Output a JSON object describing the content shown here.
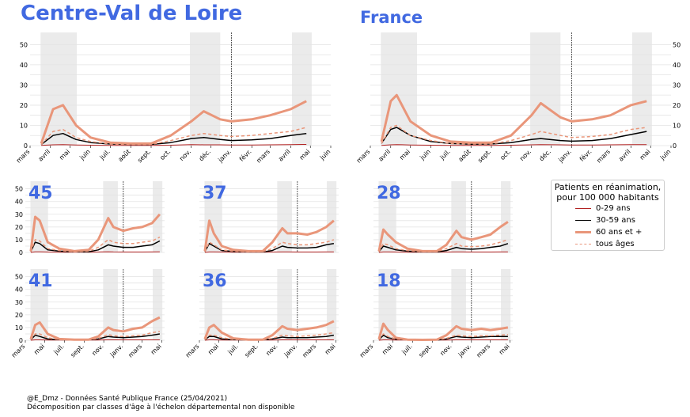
{
  "titles": {
    "region": "Centre-Val de Loire",
    "france": "France"
  },
  "legend": {
    "title_line1": "Patients en réanimation,",
    "title_line2": "pour 100 000 habitants",
    "items": [
      {
        "label": "0-29 ans",
        "color": "#b22222",
        "style": "solid",
        "weight": "thin"
      },
      {
        "label": "30-59 ans",
        "color": "#000000",
        "style": "solid",
        "weight": "normal"
      },
      {
        "label": "60 ans et +",
        "color": "#e9967a",
        "style": "solid",
        "weight": "thick"
      },
      {
        "label": "tous âges",
        "color": "#e9967a",
        "style": "dashed",
        "weight": "normal"
      }
    ]
  },
  "footer": {
    "line1": "@E_Dmz - Données Santé Publique France (25/04/2021)",
    "line2": "Décomposition par classes d'âge à l'échelon départemental non disponible"
  },
  "colors": {
    "accent": "#4169e1",
    "shade": "#ebebeb",
    "grid": "#e3e3e3"
  },
  "months_big": [
    "mars",
    "avril",
    "mai",
    "juin",
    "juil.",
    "août",
    "sept.",
    "oct.",
    "nov.",
    "déc.",
    "janv.",
    "févr.",
    "mars",
    "avril",
    "mai",
    "juin"
  ],
  "months_small": [
    "mars",
    "mai",
    "juil.",
    "sept.",
    "nov.",
    "janv.",
    "mars",
    "mai"
  ],
  "yticks_big": [
    "0",
    "10",
    "20",
    "30",
    "40",
    "50"
  ],
  "yticks_small": [
    "0",
    "10",
    "20",
    "30",
    "40",
    "50"
  ],
  "chart_data": [
    {
      "type": "line",
      "title": "Centre-Val de Loire",
      "ylim": [
        0,
        56
      ],
      "xlim": [
        "2020-03-01",
        "2021-06-01"
      ],
      "shaded_periods": [
        [
          "2020-03-17",
          "2020-05-11"
        ],
        [
          "2020-10-30",
          "2020-12-15"
        ],
        [
          "2021-04-03",
          "2021-05-03"
        ]
      ],
      "vline": "2021-01-01",
      "x": [
        "2020-03-18",
        "2020-04-05",
        "2020-04-20",
        "2020-05-10",
        "2020-06-01",
        "2020-07-01",
        "2020-08-01",
        "2020-09-01",
        "2020-10-01",
        "2020-11-01",
        "2020-11-20",
        "2020-12-15",
        "2021-01-01",
        "2021-02-01",
        "2021-03-01",
        "2021-04-01",
        "2021-04-25"
      ],
      "series": [
        {
          "name": "0-29 ans",
          "values": [
            0.1,
            0.4,
            0.5,
            0.3,
            0.2,
            0.1,
            0.1,
            0.1,
            0.2,
            0.5,
            0.4,
            0.4,
            0.3,
            0.3,
            0.4,
            0.5,
            0.6
          ]
        },
        {
          "name": "30-59 ans",
          "values": [
            0.5,
            5,
            6,
            3,
            1.5,
            0.8,
            0.6,
            0.6,
            1.5,
            3.5,
            4,
            3,
            2.5,
            2.8,
            3.5,
            5,
            6
          ]
        },
        {
          "name": "60 ans et +",
          "values": [
            1,
            18,
            20,
            10,
            4,
            1.5,
            1,
            1,
            5,
            12,
            17,
            13,
            12,
            13,
            15,
            18,
            22
          ]
        },
        {
          "name": "tous âges",
          "values": [
            0.5,
            7,
            8,
            4,
            2,
            0.8,
            0.6,
            0.6,
            2.5,
            5,
            6,
            5,
            4.5,
            5,
            6,
            7,
            9
          ]
        }
      ]
    },
    {
      "type": "line",
      "title": "France",
      "ylim": [
        0,
        56
      ],
      "xlim": [
        "2020-03-01",
        "2021-06-01"
      ],
      "shaded_periods": [
        [
          "2020-03-17",
          "2020-05-11"
        ],
        [
          "2020-10-30",
          "2020-12-15"
        ],
        [
          "2021-04-03",
          "2021-05-03"
        ]
      ],
      "vline": "2021-01-01",
      "x": [
        "2020-03-18",
        "2020-04-01",
        "2020-04-10",
        "2020-05-01",
        "2020-06-01",
        "2020-07-01",
        "2020-08-01",
        "2020-09-01",
        "2020-10-01",
        "2020-11-01",
        "2020-11-15",
        "2020-12-15",
        "2021-01-01",
        "2021-02-01",
        "2021-03-01",
        "2021-04-01",
        "2021-04-25"
      ],
      "series": [
        {
          "name": "0-29 ans",
          "values": [
            0.1,
            0.4,
            0.5,
            0.3,
            0.2,
            0.1,
            0.1,
            0.1,
            0.2,
            0.4,
            0.5,
            0.4,
            0.3,
            0.3,
            0.4,
            0.5,
            0.5
          ]
        },
        {
          "name": "30-59 ans",
          "values": [
            1,
            8,
            9,
            5,
            2,
            1,
            0.7,
            0.8,
            1.5,
            3,
            3.5,
            2.5,
            2.2,
            2.5,
            3.5,
            5.5,
            7
          ]
        },
        {
          "name": "60 ans et +",
          "values": [
            2,
            22,
            25,
            12,
            5,
            2,
            1.5,
            1.5,
            5,
            15,
            21,
            14,
            12,
            13,
            15,
            20,
            22
          ]
        },
        {
          "name": "tous âges",
          "values": [
            1,
            9,
            10,
            5,
            2.5,
            1,
            0.8,
            0.8,
            2.5,
            5.5,
            7,
            5,
            4,
            4.5,
            5.5,
            8,
            9
          ]
        }
      ]
    },
    {
      "type": "line",
      "title": "45",
      "ylim": [
        0,
        56
      ],
      "xlim": [
        "2020-03-01",
        "2021-05-10"
      ],
      "shaded_periods": [
        [
          "2020-03-17",
          "2020-05-11"
        ],
        [
          "2020-10-30",
          "2020-12-15"
        ],
        [
          "2021-04-03",
          "2021-05-03"
        ]
      ],
      "vline": "2021-01-01",
      "x": [
        "2020-03-18",
        "2020-04-01",
        "2020-04-15",
        "2020-05-10",
        "2020-06-15",
        "2020-08-01",
        "2020-09-15",
        "2020-10-15",
        "2020-11-15",
        "2020-12-01",
        "2021-01-01",
        "2021-02-01",
        "2021-03-01",
        "2021-04-01",
        "2021-04-25"
      ],
      "series": [
        {
          "name": "0-29 ans",
          "values": [
            0,
            0.5,
            0.5,
            0.3,
            0.1,
            0.1,
            0.1,
            0.3,
            0.5,
            0.4,
            0.3,
            0.3,
            0.3,
            0.4,
            0.5
          ]
        },
        {
          "name": "30-59 ans",
          "values": [
            0.5,
            8,
            7,
            2,
            1,
            0.5,
            0.5,
            2,
            6,
            5,
            4,
            4,
            5,
            6,
            9
          ]
        },
        {
          "name": "60 ans et +",
          "values": [
            1,
            28,
            25,
            8,
            3,
            1,
            2,
            10,
            27,
            20,
            17,
            19,
            20,
            23,
            30
          ]
        },
        {
          "name": "tous âges",
          "values": [
            0.5,
            10,
            9,
            3,
            1.5,
            0.5,
            1,
            4,
            10,
            8,
            7,
            7,
            8,
            9,
            12
          ]
        }
      ]
    },
    {
      "type": "line",
      "title": "37",
      "ylim": [
        0,
        56
      ],
      "xlim": [
        "2020-03-01",
        "2021-05-10"
      ],
      "shaded_periods": [
        [
          "2020-03-17",
          "2020-05-11"
        ],
        [
          "2020-10-30",
          "2020-12-15"
        ],
        [
          "2021-04-03",
          "2021-05-03"
        ]
      ],
      "vline": "2021-01-01",
      "x": [
        "2020-03-18",
        "2020-04-01",
        "2020-04-15",
        "2020-05-10",
        "2020-06-15",
        "2020-08-01",
        "2020-09-15",
        "2020-10-15",
        "2020-11-15",
        "2020-12-01",
        "2021-01-01",
        "2021-02-01",
        "2021-03-01",
        "2021-04-01",
        "2021-04-25"
      ],
      "series": [
        {
          "name": "0-29 ans",
          "values": [
            0,
            0.4,
            0.4,
            0.3,
            0.1,
            0.1,
            0.1,
            0.3,
            0.4,
            0.4,
            0.3,
            0.3,
            0.3,
            0.4,
            0.4
          ]
        },
        {
          "name": "30-59 ans",
          "values": [
            0.5,
            7,
            5,
            1.5,
            0.8,
            0.4,
            0.4,
            1.5,
            5,
            4,
            3.5,
            3.5,
            4,
            6,
            7
          ]
        },
        {
          "name": "60 ans et +",
          "values": [
            1,
            25,
            15,
            5,
            2,
            1,
            1,
            8,
            19,
            15,
            15,
            14,
            16,
            20,
            25
          ]
        },
        {
          "name": "tous âges",
          "values": [
            0.5,
            8,
            6,
            2,
            1,
            0.5,
            0.6,
            3,
            8,
            7,
            6,
            6,
            7,
            8,
            10
          ]
        }
      ]
    },
    {
      "type": "line",
      "title": "28",
      "ylim": [
        0,
        56
      ],
      "xlim": [
        "2020-03-01",
        "2021-05-10"
      ],
      "shaded_periods": [
        [
          "2020-03-17",
          "2020-05-11"
        ],
        [
          "2020-10-30",
          "2020-12-15"
        ],
        [
          "2021-04-03",
          "2021-05-03"
        ]
      ],
      "vline": "2021-01-01",
      "x": [
        "2020-03-18",
        "2020-04-01",
        "2020-04-15",
        "2020-05-10",
        "2020-06-15",
        "2020-08-01",
        "2020-09-15",
        "2020-10-15",
        "2020-11-15",
        "2020-12-01",
        "2021-01-01",
        "2021-02-01",
        "2021-03-01",
        "2021-04-01",
        "2021-04-25"
      ],
      "series": [
        {
          "name": "0-29 ans",
          "values": [
            0,
            0.4,
            0.4,
            0.3,
            0.1,
            0.1,
            0.1,
            0.3,
            0.4,
            0.4,
            0.3,
            0.3,
            0.3,
            0.4,
            0.4
          ]
        },
        {
          "name": "30-59 ans",
          "values": [
            0.5,
            5,
            4,
            2,
            1,
            0.4,
            0.4,
            1.5,
            4,
            3,
            2.5,
            3,
            4,
            5,
            7
          ]
        },
        {
          "name": "60 ans et +",
          "values": [
            1,
            18,
            14,
            8,
            3,
            1,
            1,
            6,
            17,
            12,
            10,
            12,
            14,
            20,
            24
          ]
        },
        {
          "name": "tous âges",
          "values": [
            0.5,
            7,
            6,
            3,
            1.5,
            0.5,
            0.6,
            3,
            7,
            5,
            4.5,
            5,
            6,
            8,
            10
          ]
        }
      ]
    },
    {
      "type": "line",
      "title": "41",
      "ylim": [
        0,
        56
      ],
      "xlim": [
        "2020-03-01",
        "2021-05-10"
      ],
      "shaded_periods": [
        [
          "2020-03-17",
          "2020-05-11"
        ],
        [
          "2020-10-30",
          "2020-12-15"
        ],
        [
          "2021-04-03",
          "2021-05-03"
        ]
      ],
      "vline": "2021-01-01",
      "x": [
        "2020-03-18",
        "2020-04-01",
        "2020-04-15",
        "2020-05-10",
        "2020-06-15",
        "2020-08-01",
        "2020-09-15",
        "2020-10-15",
        "2020-11-15",
        "2020-12-01",
        "2021-01-01",
        "2021-02-01",
        "2021-03-01",
        "2021-04-01",
        "2021-04-25"
      ],
      "series": [
        {
          "name": "0-29 ans",
          "values": [
            0,
            0.3,
            0.3,
            0.2,
            0.1,
            0.1,
            0.1,
            0.2,
            0.3,
            0.3,
            0.3,
            0.3,
            0.3,
            0.3,
            0.3
          ]
        },
        {
          "name": "30-59 ans",
          "values": [
            0.3,
            4,
            3,
            1,
            0.5,
            0.3,
            0.3,
            1,
            3,
            2.5,
            2,
            2.5,
            3,
            4,
            5
          ]
        },
        {
          "name": "60 ans et +",
          "values": [
            1,
            12,
            14,
            5,
            1,
            0.5,
            0.5,
            3,
            10,
            8,
            7,
            9,
            10,
            15,
            18
          ]
        },
        {
          "name": "tous âges",
          "values": [
            0.4,
            5,
            5,
            2,
            0.5,
            0.3,
            0.3,
            1.5,
            4.5,
            3.5,
            3,
            3.5,
            4,
            6,
            7
          ]
        }
      ]
    },
    {
      "type": "line",
      "title": "36",
      "ylim": [
        0,
        56
      ],
      "xlim": [
        "2020-03-01",
        "2021-05-10"
      ],
      "shaded_periods": [
        [
          "2020-03-17",
          "2020-05-11"
        ],
        [
          "2020-10-30",
          "2020-12-15"
        ],
        [
          "2021-04-03",
          "2021-05-03"
        ]
      ],
      "vline": "2021-01-01",
      "x": [
        "2020-03-18",
        "2020-04-01",
        "2020-04-15",
        "2020-05-10",
        "2020-06-15",
        "2020-08-01",
        "2020-09-15",
        "2020-10-15",
        "2020-11-15",
        "2020-12-01",
        "2021-01-01",
        "2021-02-01",
        "2021-03-01",
        "2021-04-01",
        "2021-04-25"
      ],
      "series": [
        {
          "name": "0-29 ans",
          "values": [
            0,
            0.3,
            0.3,
            0.2,
            0.1,
            0.1,
            0.1,
            0.2,
            0.3,
            0.3,
            0.3,
            0.3,
            0.3,
            0.3,
            0.3
          ]
        },
        {
          "name": "30-59 ans",
          "values": [
            0.3,
            3,
            3,
            1,
            0.5,
            0.3,
            0.3,
            1,
            2.5,
            2,
            2,
            2,
            2.5,
            3,
            4
          ]
        },
        {
          "name": "60 ans et +",
          "values": [
            1,
            10,
            12,
            6,
            1.5,
            0.5,
            0.5,
            4,
            11,
            9,
            8,
            9,
            10,
            12,
            15
          ]
        },
        {
          "name": "tous âges",
          "values": [
            0.4,
            4,
            4,
            2,
            0.6,
            0.3,
            0.3,
            1.5,
            4,
            3.5,
            3,
            3.5,
            4,
            5,
            6
          ]
        }
      ]
    },
    {
      "type": "line",
      "title": "18",
      "ylim": [
        0,
        56
      ],
      "xlim": [
        "2020-03-01",
        "2021-05-10"
      ],
      "shaded_periods": [
        [
          "2020-03-17",
          "2020-05-11"
        ],
        [
          "2020-10-30",
          "2020-12-15"
        ],
        [
          "2021-04-03",
          "2021-05-03"
        ]
      ],
      "vline": "2021-01-01",
      "x": [
        "2020-03-18",
        "2020-04-01",
        "2020-04-15",
        "2020-05-10",
        "2020-06-15",
        "2020-08-01",
        "2020-09-15",
        "2020-10-15",
        "2020-11-15",
        "2020-12-01",
        "2021-01-01",
        "2021-02-01",
        "2021-03-01",
        "2021-04-01",
        "2021-04-25"
      ],
      "series": [
        {
          "name": "0-29 ans",
          "values": [
            0,
            0.3,
            0.3,
            0.2,
            0.1,
            0.1,
            0.1,
            0.2,
            0.3,
            0.3,
            0.3,
            0.3,
            0.3,
            0.3,
            0.3
          ]
        },
        {
          "name": "30-59 ans",
          "values": [
            0.3,
            4,
            2,
            0.8,
            0.4,
            0.2,
            0.2,
            1,
            3,
            2.5,
            2,
            2.5,
            3,
            3,
            3
          ]
        },
        {
          "name": "60 ans et +",
          "values": [
            1,
            13,
            8,
            2,
            0.5,
            0.3,
            0.5,
            4,
            11,
            9,
            8,
            9,
            8,
            9,
            10
          ]
        },
        {
          "name": "tous âges",
          "values": [
            0.4,
            5,
            3,
            1,
            0.3,
            0.2,
            0.3,
            1.5,
            4,
            3.5,
            3,
            3.5,
            3.5,
            4,
            4.5
          ]
        }
      ]
    }
  ]
}
